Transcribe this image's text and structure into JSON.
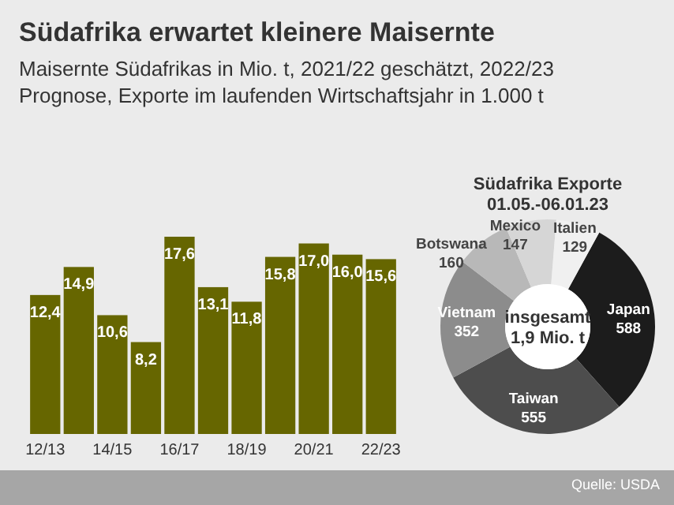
{
  "chart_data": [
    {
      "type": "bar",
      "title": "Südafrika erwartet kleinere Maisernte",
      "subtitle": "Maisernte Südafrikas in Mio. t, 2021/22 geschätzt, 2022/23 Prognose, Exporte im laufenden Wirtschaftsjahr in 1.000 t",
      "categories": [
        "12/13",
        null,
        "14/15",
        null,
        "16/17",
        null,
        "18/19",
        null,
        "20/21",
        null,
        "22/23"
      ],
      "values": [
        12.4,
        14.9,
        10.6,
        8.2,
        17.6,
        13.1,
        11.8,
        15.8,
        17.0,
        16.0,
        15.6
      ],
      "value_labels": [
        "12,4",
        "14,9",
        "10,6",
        "8,2",
        "17,6",
        "13,1",
        "11,8",
        "15,8",
        "17,0",
        "16,0",
        "15,6"
      ],
      "color": "#666600"
    },
    {
      "type": "donut",
      "title": "Südafrika Exporte",
      "subtitle": "01.05.-06.01.23",
      "categories": [
        "Japan",
        "Taiwan",
        "Vietnam",
        "Botswana",
        "Mexico",
        "Italien"
      ],
      "values": [
        588,
        555,
        352,
        160,
        147,
        129
      ],
      "colors": [
        "#1c1c1c",
        "#4d4d4d",
        "#8c8c8c",
        "#b8b8b8",
        "#d6d6d6",
        "#f0f0f0"
      ],
      "data_labels": true,
      "annotations": [
        "insgesamt\n1,9 Mio. t",
        "Quelle: USDA"
      ]
    }
  ]
}
